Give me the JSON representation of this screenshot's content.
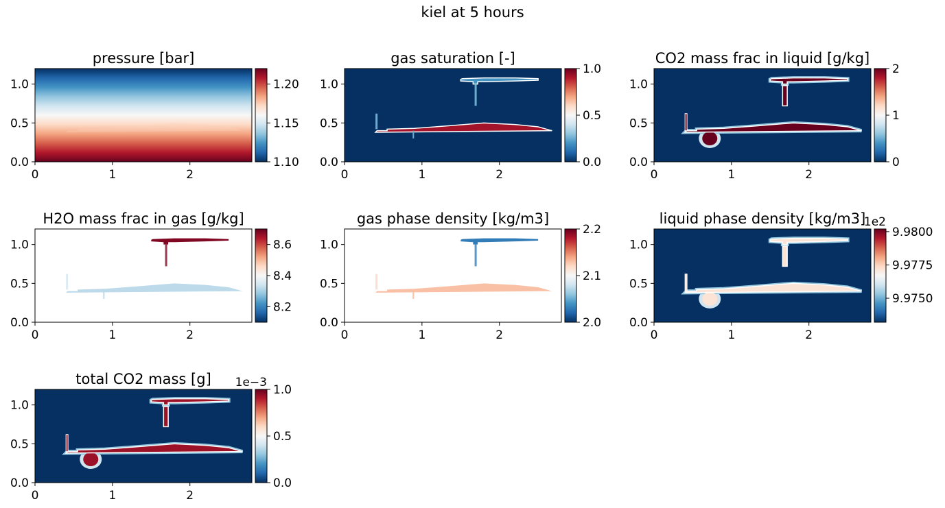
{
  "figure": {
    "title": "kiel at 5 hours"
  },
  "colors": {
    "cmap": [
      "#053061",
      "#2166ac",
      "#4393c3",
      "#92c5de",
      "#d1e5f0",
      "#f7f7f7",
      "#fddbc7",
      "#f4a582",
      "#d6604d",
      "#b2182b",
      "#67001f"
    ],
    "bg_low": "#053061",
    "mask_line": "#ffffff"
  },
  "chart_data": [
    {
      "id": "pressure",
      "type": "heatmap",
      "title": "pressure [bar]",
      "xlim": [
        0,
        2.8
      ],
      "ylim": [
        0,
        1.2
      ],
      "xticks": [
        0,
        1,
        2
      ],
      "xtick_labels": [
        "0",
        "1",
        "2"
      ],
      "yticks": [
        0.0,
        0.5,
        1.0
      ],
      "ytick_labels": [
        "0.0",
        "0.5",
        "1.0"
      ],
      "field": "vertical_gradient",
      "colorbar": {
        "vmin": 1.1,
        "vmax": 1.22,
        "ticks": [
          1.1,
          1.15,
          1.2
        ],
        "tick_labels": [
          "1.10",
          "1.15",
          "1.20"
        ],
        "offset": ""
      }
    },
    {
      "id": "gas_saturation",
      "type": "heatmap",
      "title": "gas saturation [-]",
      "xlim": [
        0,
        2.8
      ],
      "ylim": [
        0,
        1.2
      ],
      "xticks": [
        0,
        1,
        2
      ],
      "xtick_labels": [
        "0",
        "1",
        "2"
      ],
      "yticks": [
        0.0,
        0.5,
        1.0
      ],
      "ytick_labels": [
        "0.0",
        "0.5",
        "1.0"
      ],
      "field": "plume_sharp",
      "background_value": 0.0,
      "plume_lower_value": 0.92,
      "plume_upper_value": 0.2,
      "stem_value": 0.25,
      "colorbar": {
        "vmin": 0,
        "vmax": 1,
        "ticks": [
          0,
          0.5,
          1
        ],
        "tick_labels": [
          "0.0",
          "0.5",
          "1.0"
        ],
        "offset": ""
      }
    },
    {
      "id": "co2_liquid",
      "type": "heatmap",
      "title": "CO2 mass frac in liquid [g/kg]",
      "xlim": [
        0,
        2.8
      ],
      "ylim": [
        0,
        1.2
      ],
      "xticks": [
        0,
        1,
        2
      ],
      "xtick_labels": [
        "0",
        "1",
        "2"
      ],
      "yticks": [
        0.0,
        0.5,
        1.0
      ],
      "ytick_labels": [
        "0.0",
        "0.5",
        "1.0"
      ],
      "field": "plume_dissolved",
      "background_value": 0.0,
      "plume_value": 2.0,
      "colorbar": {
        "vmin": 0,
        "vmax": 2,
        "ticks": [
          0,
          1,
          2
        ],
        "tick_labels": [
          "0",
          "1",
          "2"
        ],
        "offset": ""
      }
    },
    {
      "id": "h2o_gas",
      "type": "heatmap",
      "title": "H2O mass frac in gas [g/kg]",
      "xlim": [
        0,
        2.8
      ],
      "ylim": [
        0,
        1.2
      ],
      "xticks": [
        0,
        1,
        2
      ],
      "xtick_labels": [
        "0",
        "1",
        "2"
      ],
      "yticks": [
        0.0,
        0.5,
        1.0
      ],
      "ytick_labels": [
        "0.0",
        "0.5",
        "1.0"
      ],
      "field": "plume_gas_only",
      "plume_lower_value": 8.32,
      "plume_upper_value": 8.68,
      "colorbar": {
        "vmin": 8.1,
        "vmax": 8.7,
        "ticks": [
          8.2,
          8.4,
          8.6
        ],
        "tick_labels": [
          "8.2",
          "8.4",
          "8.6"
        ],
        "offset": ""
      }
    },
    {
      "id": "gas_density",
      "type": "heatmap",
      "title": "gas phase density [kg/m3]",
      "xlim": [
        0,
        2.8
      ],
      "ylim": [
        0,
        1.2
      ],
      "xticks": [
        0,
        1,
        2
      ],
      "xtick_labels": [
        "0",
        "1",
        "2"
      ],
      "yticks": [
        0.0,
        0.5,
        1.0
      ],
      "ytick_labels": [
        "0.0",
        "0.5",
        "1.0"
      ],
      "field": "plume_gas_only",
      "plume_lower_value": 2.13,
      "plume_upper_value": 2.03,
      "colorbar": {
        "vmin": 2.0,
        "vmax": 2.2,
        "ticks": [
          2.0,
          2.1,
          2.2
        ],
        "tick_labels": [
          "2.0",
          "2.1",
          "2.2"
        ],
        "offset": ""
      }
    },
    {
      "id": "liquid_density",
      "type": "heatmap",
      "title": "liquid phase density [kg/m3]",
      "xlim": [
        0,
        2.8
      ],
      "ylim": [
        0,
        1.2
      ],
      "xticks": [
        0,
        1,
        2
      ],
      "xtick_labels": [
        "0",
        "1",
        "2"
      ],
      "yticks": [
        0.0,
        0.5,
        1.0
      ],
      "ytick_labels": [
        "0.0",
        "0.5",
        "1.0"
      ],
      "field": "plume_dissolved",
      "background_value": 9.9732,
      "plume_value": 9.9772,
      "colorbar": {
        "vmin": 9.9732,
        "vmax": 9.9802,
        "ticks": [
          9.975,
          9.9775,
          9.98
        ],
        "tick_labels": [
          "9.9750",
          "9.9775",
          "9.9800"
        ],
        "offset": "1e2"
      }
    },
    {
      "id": "total_co2",
      "type": "heatmap",
      "title": "total CO2 mass [g]",
      "xlim": [
        0,
        2.8
      ],
      "ylim": [
        0,
        1.2
      ],
      "xticks": [
        0,
        1,
        2
      ],
      "xtick_labels": [
        "0",
        "1",
        "2"
      ],
      "yticks": [
        0.0,
        0.5,
        1.0
      ],
      "ytick_labels": [
        "0.0",
        "0.5",
        "1.0"
      ],
      "field": "plume_dissolved",
      "background_value": 0.0,
      "plume_value": 0.93,
      "colorbar": {
        "vmin": 0,
        "vmax": 1,
        "ticks": [
          0,
          0.5,
          1
        ],
        "tick_labels": [
          "0.0",
          "0.5",
          "1.0"
        ],
        "offset": "1e−3"
      }
    }
  ]
}
